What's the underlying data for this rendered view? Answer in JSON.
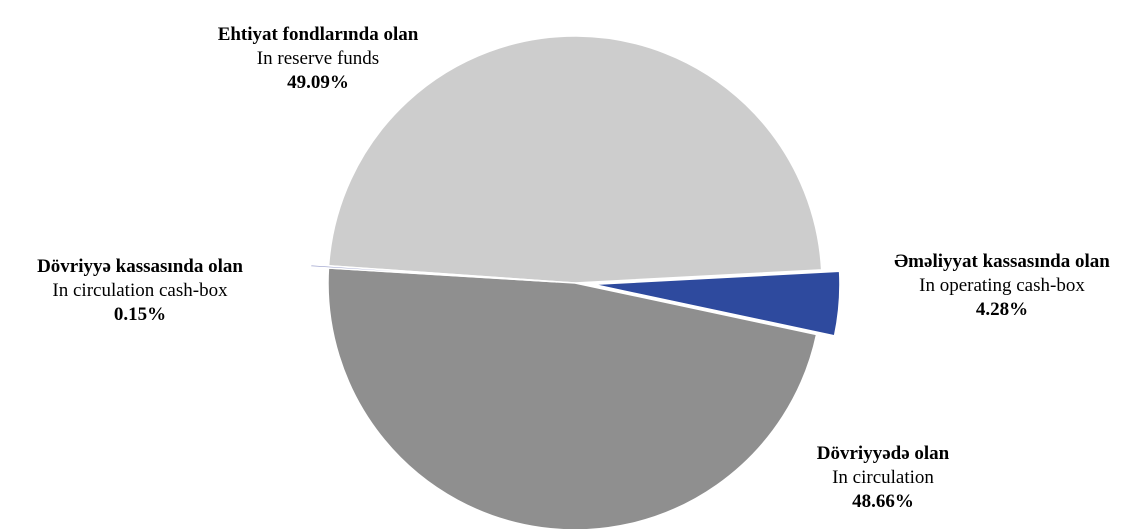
{
  "chart_data": {
    "type": "pie",
    "slices": [
      {
        "label": "Ehtiyat fondlarında olan",
        "sublabel": "In reserve funds",
        "value": 49.09,
        "value_text": "49.09%",
        "color": "#cdcdcd",
        "exploded": false
      },
      {
        "label": "Əməliyyat kassasında olan",
        "sublabel": "In operating cash-box",
        "value": 4.28,
        "value_text": "4.28%",
        "color": "#2e4a9e",
        "exploded": true
      },
      {
        "label": "Dövriyyədə olan",
        "sublabel": "In circulation",
        "value": 48.66,
        "value_text": "48.66%",
        "color": "#8f8f8f",
        "exploded": false
      },
      {
        "label": "Dövriyyə kassasında olan",
        "sublabel": "In circulation cash-box",
        "value": 0.15,
        "value_text": "0.15%",
        "color": "#9aa0cc",
        "exploded": true
      }
    ],
    "title": "",
    "legend": "none"
  }
}
